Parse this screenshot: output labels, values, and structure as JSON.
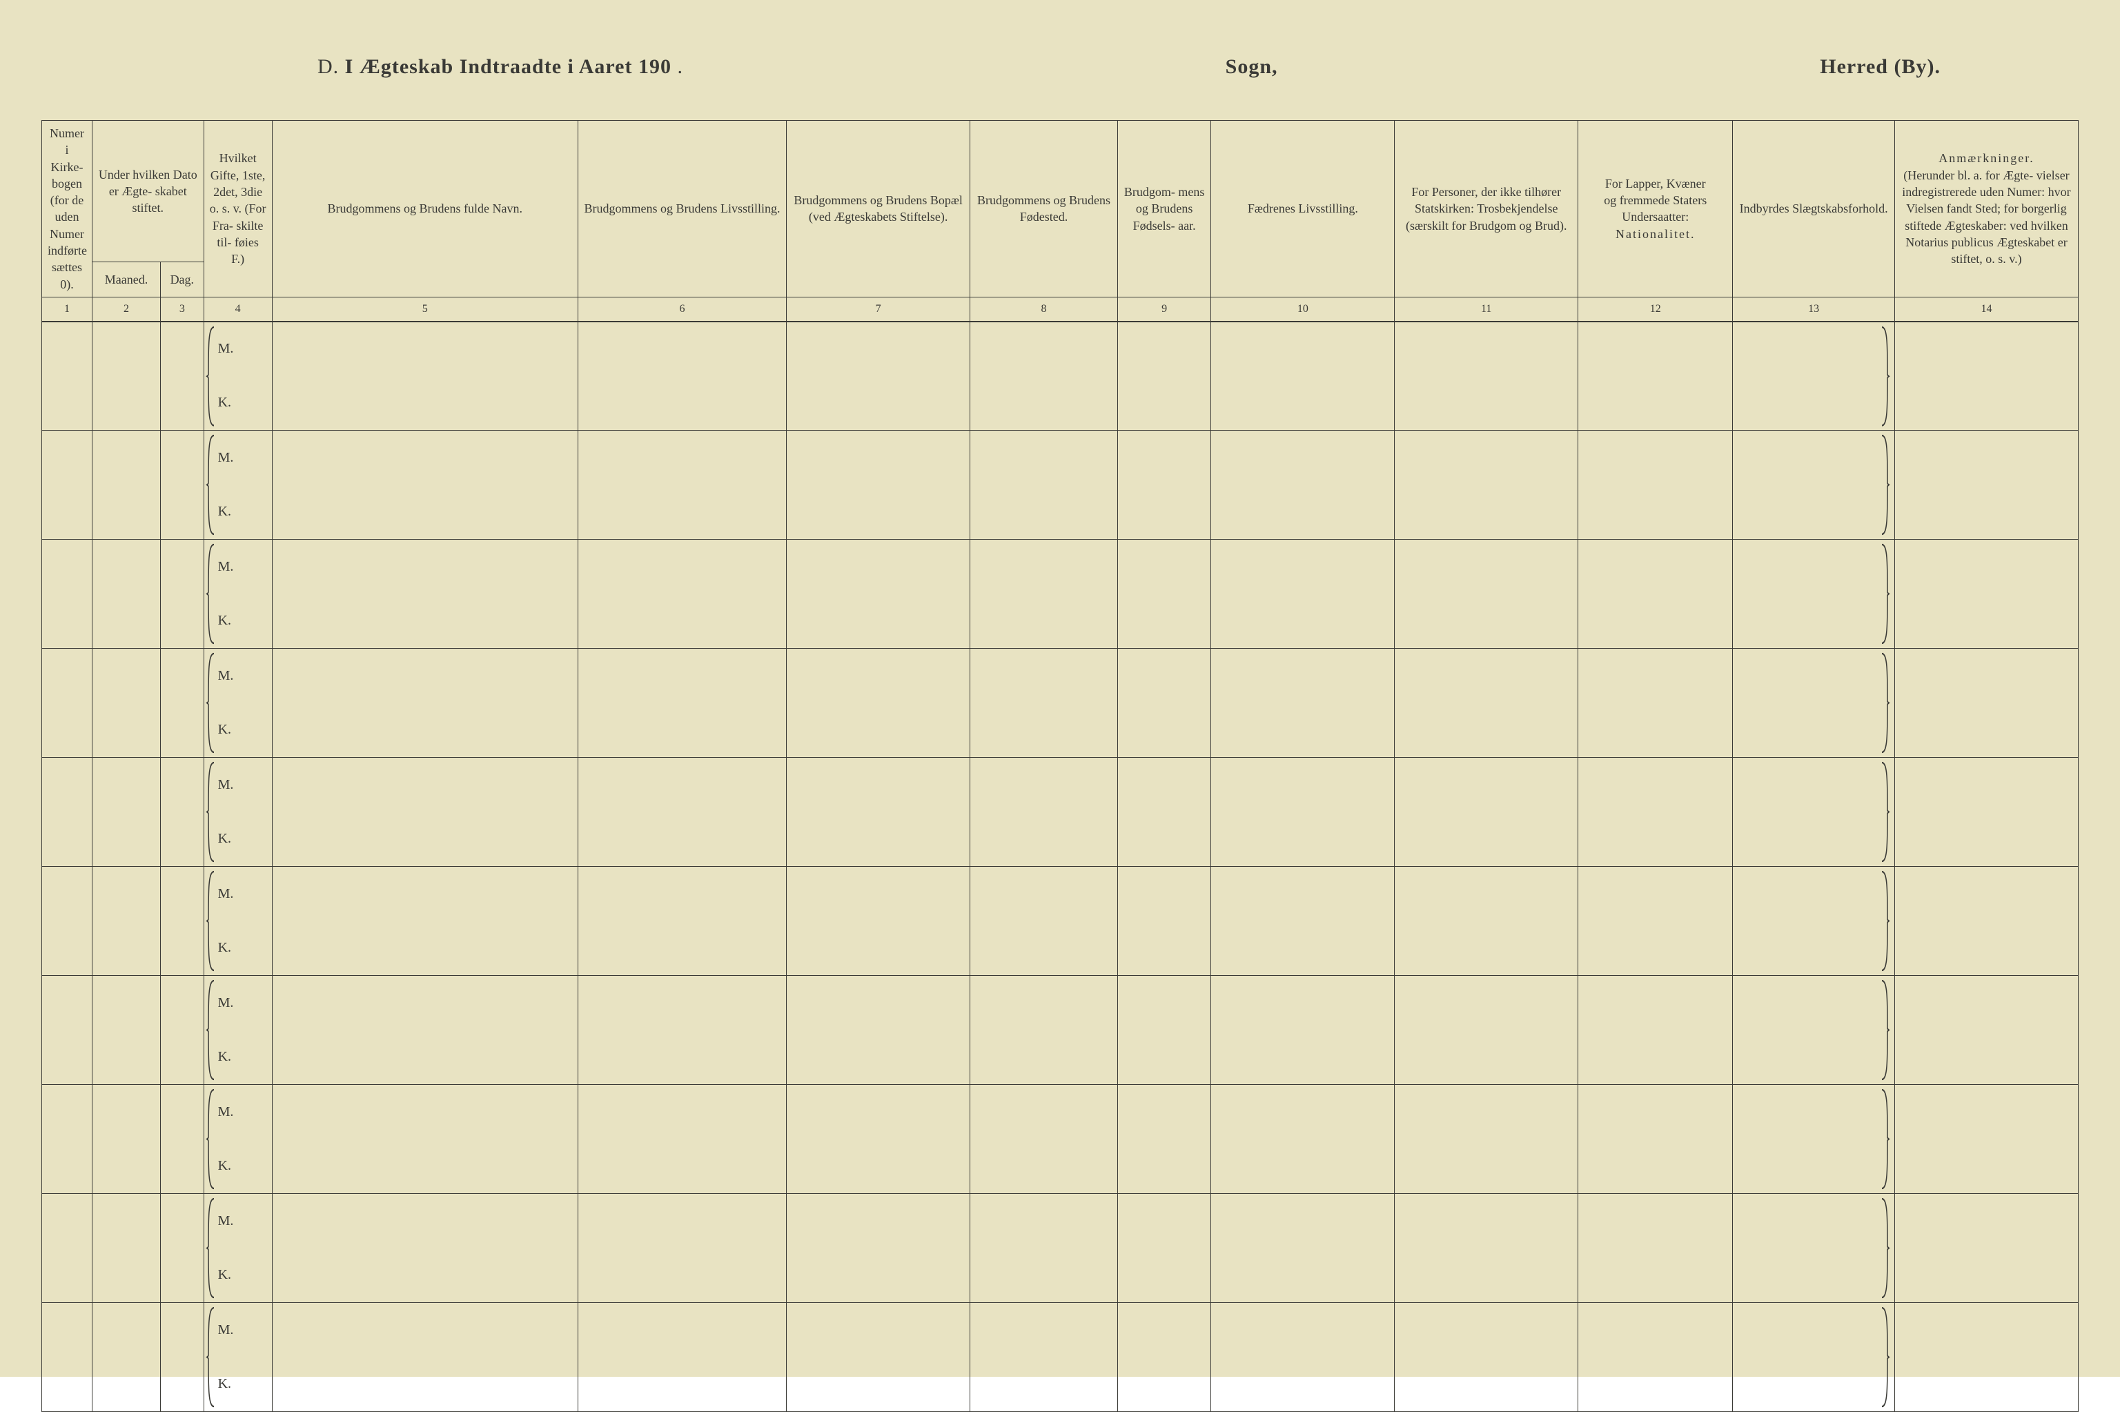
{
  "colors": {
    "paper": "#e8e3c2",
    "ink": "#3a3a36",
    "rule": "#3a3a36"
  },
  "title": {
    "section_letter": "D.",
    "main": "I Ægteskab Indtraadte i Aaret 190",
    "main_suffix": ".",
    "mid_label": "Sogn,",
    "right_label": "Herred (By)."
  },
  "headers": {
    "c1": "Numer i Kirke- bogen (for de uden Numer indførte sættes 0).",
    "c23_top": "Under hvilken Dato er Ægte- skabet stiftet.",
    "c2_sub": "Maaned.",
    "c3_sub": "Dag.",
    "c4": "Hvilket Gifte, 1ste, 2det, 3die o. s. v. (For Fra- skilte til- føies F.)",
    "c5": "Brudgommens og Brudens fulde Navn.",
    "c6": "Brudgommens og Brudens Livsstilling.",
    "c7": "Brudgommens og Brudens Bopæl (ved Ægteskabets Stiftelse).",
    "c8": "Brudgommens og Brudens Fødested.",
    "c9": "Brudgom- mens og Brudens Fødsels- aar.",
    "c10": "Fædrenes Livsstilling.",
    "c11": "For Personer, der ikke tilhører Statskirken: Trosbekjendelse (særskilt for Brudgom og Brud).",
    "c12": "For Lapper, Kvæner og fremmede Staters Undersaatter: Nationalitet.",
    "c13": "Indbyrdes Slægtskabsforhold.",
    "c14": "Anmærkninger. (Herunder bl. a. for Ægte- vielser indregistrerede uden Numer: hvor Vielsen fandt Sted; for borgerlig stiftede Ægteskaber: ved hvilken Notarius publicus Ægteskabet er stiftet, o. s. v.)"
  },
  "col_numbers": [
    "1",
    "2",
    "3",
    "4",
    "5",
    "6",
    "7",
    "8",
    "9",
    "10",
    "11",
    "12",
    "13",
    "14"
  ],
  "mk_labels": {
    "m": "M.",
    "k": "K."
  },
  "row_count": 10
}
